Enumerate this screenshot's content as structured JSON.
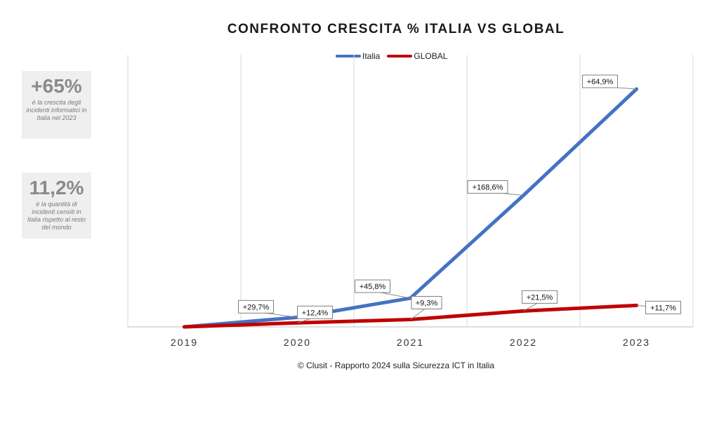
{
  "stats": [
    {
      "value": "+65%",
      "description": "è la crescita degli incidenti informatici in Italia nel 2023"
    },
    {
      "value": "11,2%",
      "description": "è la quantità di incidenti censiti in Italia rispetto al resto del mondo"
    }
  ],
  "footer": "© Clusit - Rapporto 2024 sulla Sicurezza ICT in Italia",
  "chart_data": {
    "type": "line",
    "title": "CONFRONTO CRESCITA % ITALIA VS GLOBAL",
    "categories": [
      "2019",
      "2020",
      "2021",
      "2022",
      "2023"
    ],
    "series": [
      {
        "name": "Italia",
        "color": "#4472c4",
        "values": [
          0,
          29.7,
          45.8,
          168.6,
          64.9
        ],
        "labels": [
          "",
          "+29,7%",
          "+45,8%",
          "+168,6%",
          "+64,9%"
        ]
      },
      {
        "name": "GLOBAL",
        "color": "#c00000",
        "values": [
          0,
          12.4,
          9.3,
          21.5,
          11.7
        ],
        "labels": [
          "",
          "+12,4%",
          "+9,3%",
          "+21,5%",
          "+11,7%"
        ]
      }
    ],
    "grid": true,
    "legend": "top"
  }
}
